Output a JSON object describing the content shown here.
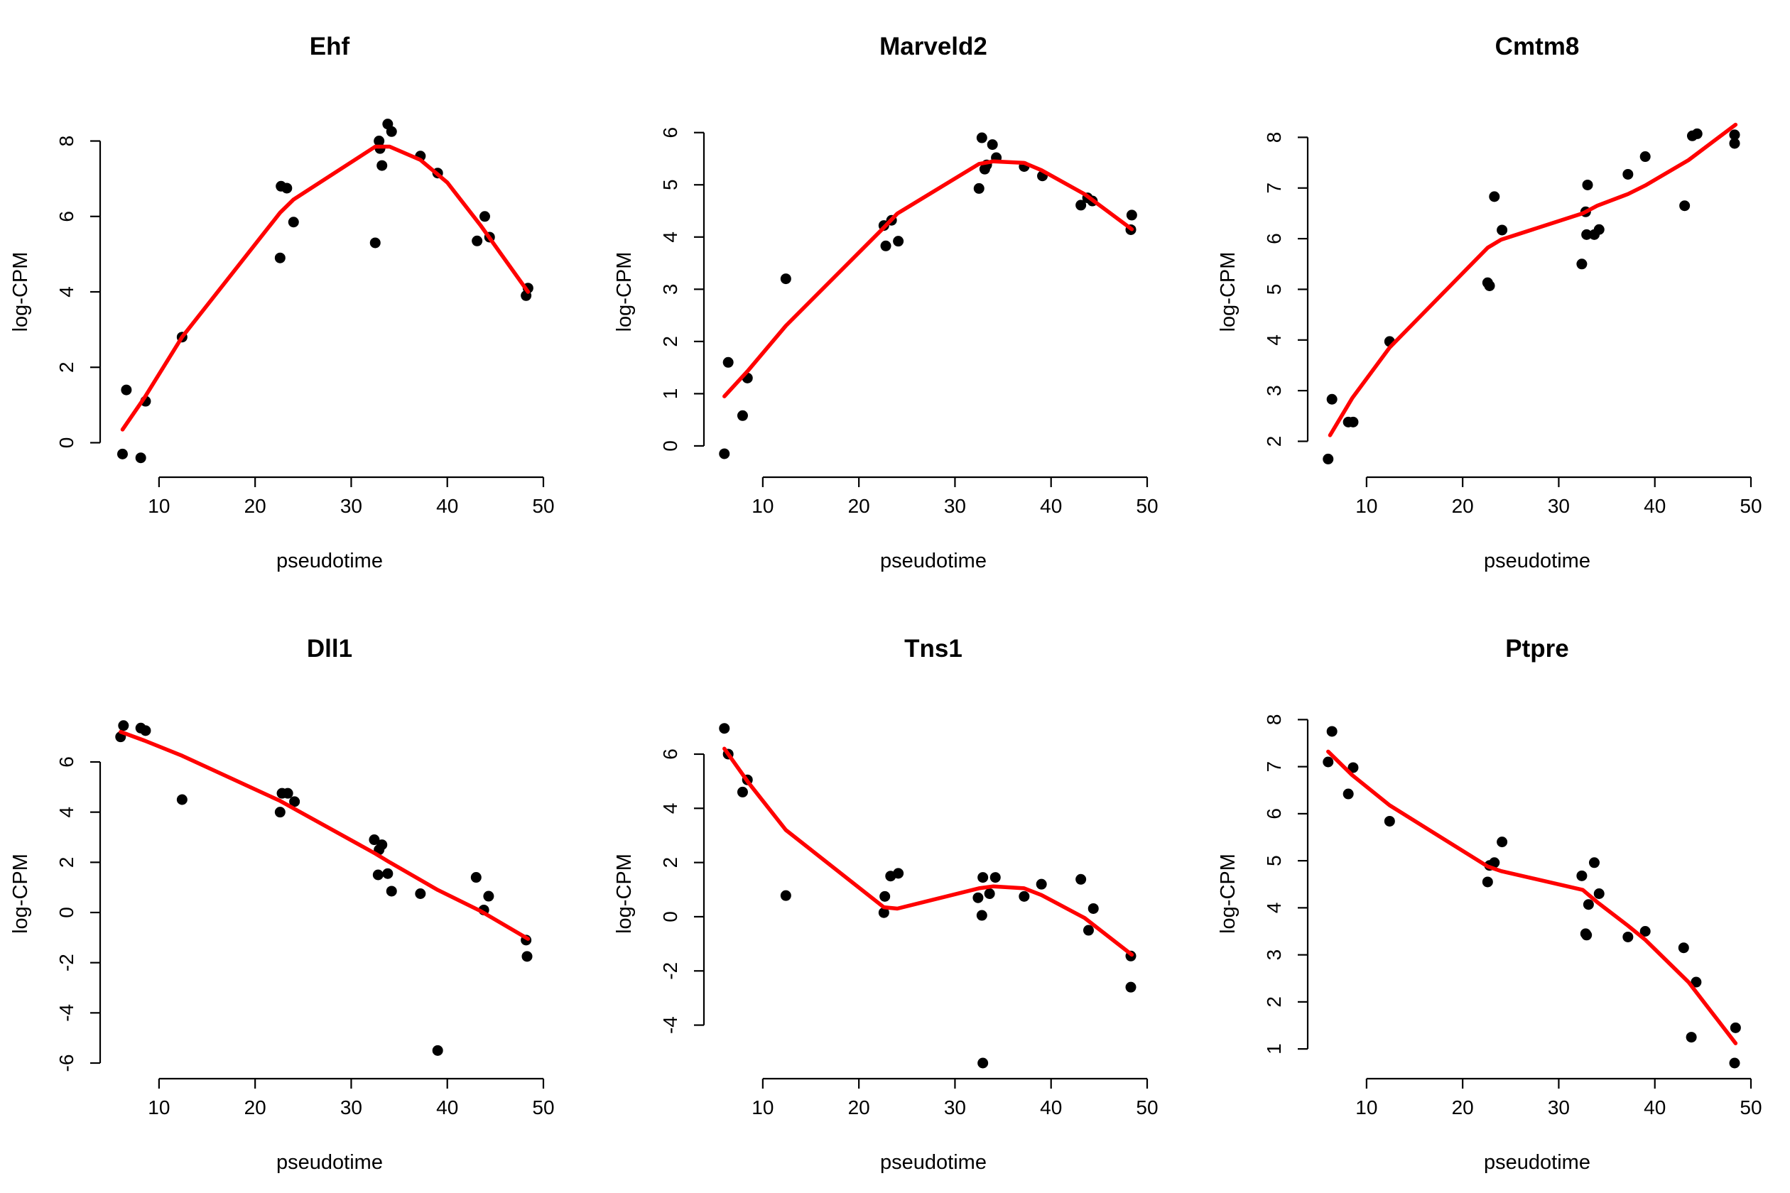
{
  "chart_data": [
    {
      "type": "scatter",
      "title": "Ehf",
      "xlabel": "pseudotime",
      "ylabel": "log-CPM",
      "xlim": [
        5.5,
        50
      ],
      "ylim": [
        -0.5,
        8.5
      ],
      "xticks": [
        10,
        20,
        30,
        40,
        50
      ],
      "yticks": [
        0,
        2,
        4,
        6,
        8
      ],
      "points": [
        [
          6.2,
          -0.3
        ],
        [
          6.6,
          1.4
        ],
        [
          8.1,
          -0.4
        ],
        [
          8.6,
          1.1
        ],
        [
          12.4,
          2.8
        ],
        [
          22.6,
          4.9
        ],
        [
          22.7,
          6.8
        ],
        [
          23.3,
          6.75
        ],
        [
          24.0,
          5.85
        ],
        [
          32.5,
          5.3
        ],
        [
          32.9,
          8.0
        ],
        [
          33.0,
          7.8
        ],
        [
          33.2,
          7.35
        ],
        [
          33.8,
          8.45
        ],
        [
          34.2,
          8.25
        ],
        [
          37.2,
          7.6
        ],
        [
          39.0,
          7.15
        ],
        [
          43.1,
          5.35
        ],
        [
          43.9,
          6.0
        ],
        [
          44.4,
          5.45
        ],
        [
          48.2,
          3.9
        ],
        [
          48.4,
          4.1
        ]
      ],
      "fit": [
        [
          6.2,
          0.35
        ],
        [
          8.5,
          1.2
        ],
        [
          12.4,
          2.8
        ],
        [
          22.6,
          6.1
        ],
        [
          24.0,
          6.45
        ],
        [
          32.5,
          7.85
        ],
        [
          34.0,
          7.85
        ],
        [
          37.2,
          7.5
        ],
        [
          40.0,
          6.9
        ],
        [
          43.5,
          5.75
        ],
        [
          48.4,
          4.0
        ]
      ]
    },
    {
      "type": "scatter",
      "title": "Marveld2",
      "xlabel": "pseudotime",
      "ylabel": "log-CPM",
      "xlim": [
        5.5,
        50
      ],
      "ylim": [
        -0.3,
        6.2
      ],
      "xticks": [
        10,
        20,
        30,
        40,
        50
      ],
      "yticks": [
        0,
        1,
        2,
        3,
        4,
        5,
        6
      ],
      "points": [
        [
          6.0,
          -0.15
        ],
        [
          6.4,
          1.6
        ],
        [
          7.9,
          0.58
        ],
        [
          8.4,
          1.3
        ],
        [
          12.4,
          3.2
        ],
        [
          22.6,
          4.22
        ],
        [
          22.8,
          3.83
        ],
        [
          23.4,
          4.32
        ],
        [
          24.1,
          3.92
        ],
        [
          32.5,
          4.93
        ],
        [
          32.8,
          5.9
        ],
        [
          33.1,
          5.3
        ],
        [
          33.3,
          5.38
        ],
        [
          33.9,
          5.77
        ],
        [
          34.3,
          5.52
        ],
        [
          37.2,
          5.35
        ],
        [
          39.1,
          5.17
        ],
        [
          43.1,
          4.61
        ],
        [
          43.8,
          4.75
        ],
        [
          44.3,
          4.69
        ],
        [
          48.3,
          4.14
        ],
        [
          48.4,
          4.42
        ]
      ],
      "fit": [
        [
          6.0,
          0.95
        ],
        [
          8.5,
          1.45
        ],
        [
          12.4,
          2.3
        ],
        [
          22.6,
          4.18
        ],
        [
          24.0,
          4.45
        ],
        [
          32.5,
          5.4
        ],
        [
          34.0,
          5.45
        ],
        [
          37.2,
          5.42
        ],
        [
          39.0,
          5.28
        ],
        [
          43.5,
          4.82
        ],
        [
          48.4,
          4.15
        ]
      ]
    },
    {
      "type": "scatter",
      "title": "Cmtm8",
      "xlabel": "pseudotime",
      "ylabel": "log-CPM",
      "xlim": [
        5.5,
        50
      ],
      "ylim": [
        1.6,
        8.3
      ],
      "xticks": [
        10,
        20,
        30,
        40,
        50
      ],
      "yticks": [
        2,
        3,
        4,
        5,
        6,
        7,
        8
      ],
      "points": [
        [
          6.0,
          1.65
        ],
        [
          6.4,
          2.83
        ],
        [
          8.1,
          2.38
        ],
        [
          8.6,
          2.38
        ],
        [
          12.4,
          3.97
        ],
        [
          22.6,
          5.13
        ],
        [
          22.8,
          5.07
        ],
        [
          23.3,
          6.83
        ],
        [
          24.1,
          6.17
        ],
        [
          32.4,
          5.5
        ],
        [
          32.8,
          6.53
        ],
        [
          33.0,
          7.06
        ],
        [
          32.9,
          6.08
        ],
        [
          33.7,
          6.08
        ],
        [
          34.2,
          6.18
        ],
        [
          37.2,
          7.27
        ],
        [
          39.0,
          7.62
        ],
        [
          43.1,
          6.65
        ],
        [
          43.9,
          8.03
        ],
        [
          44.4,
          8.07
        ],
        [
          48.3,
          7.88
        ],
        [
          48.3,
          8.05
        ]
      ],
      "fit": [
        [
          6.2,
          2.12
        ],
        [
          8.5,
          2.85
        ],
        [
          12.4,
          3.85
        ],
        [
          22.6,
          5.82
        ],
        [
          24.0,
          5.98
        ],
        [
          32.5,
          6.5
        ],
        [
          34.0,
          6.65
        ],
        [
          37.2,
          6.88
        ],
        [
          39.0,
          7.05
        ],
        [
          43.5,
          7.55
        ],
        [
          48.4,
          8.25
        ]
      ]
    },
    {
      "type": "scatter",
      "title": "Dll1",
      "xlabel": "pseudotime",
      "ylabel": "log-CPM",
      "xlim": [
        5.5,
        50
      ],
      "ylim": [
        -6,
        7.5
      ],
      "xticks": [
        10,
        20,
        30,
        40,
        50
      ],
      "yticks": [
        -6,
        -4,
        -2,
        0,
        2,
        4,
        6
      ],
      "points": [
        [
          6.0,
          7.0
        ],
        [
          6.3,
          7.45
        ],
        [
          8.1,
          7.35
        ],
        [
          8.6,
          7.25
        ],
        [
          12.4,
          4.5
        ],
        [
          22.6,
          4.0
        ],
        [
          22.8,
          4.75
        ],
        [
          23.4,
          4.75
        ],
        [
          24.1,
          4.42
        ],
        [
          32.4,
          2.9
        ],
        [
          32.8,
          1.5
        ],
        [
          32.9,
          2.5
        ],
        [
          33.2,
          2.7
        ],
        [
          33.8,
          1.55
        ],
        [
          34.2,
          0.85
        ],
        [
          37.2,
          0.75
        ],
        [
          39.0,
          -5.5
        ],
        [
          43.0,
          1.4
        ],
        [
          43.8,
          0.1
        ],
        [
          44.3,
          0.65
        ],
        [
          48.2,
          -1.1
        ],
        [
          48.3,
          -1.75
        ]
      ],
      "fit": [
        [
          6.0,
          7.2
        ],
        [
          8.5,
          6.85
        ],
        [
          12.4,
          6.25
        ],
        [
          22.6,
          4.45
        ],
        [
          24.0,
          4.15
        ],
        [
          32.5,
          2.35
        ],
        [
          34.0,
          2.0
        ],
        [
          37.2,
          1.3
        ],
        [
          39.0,
          0.9
        ],
        [
          43.5,
          0.05
        ],
        [
          48.4,
          -1.05
        ]
      ]
    },
    {
      "type": "scatter",
      "title": "Tns1",
      "xlabel": "pseudotime",
      "ylabel": "log-CPM",
      "xlim": [
        5.5,
        50
      ],
      "ylim": [
        -5.4,
        7.1
      ],
      "xticks": [
        10,
        20,
        30,
        40,
        50
      ],
      "yticks": [
        -4,
        -2,
        0,
        2,
        4,
        6
      ],
      "points": [
        [
          6.0,
          6.95
        ],
        [
          6.4,
          6.0
        ],
        [
          7.9,
          4.6
        ],
        [
          8.4,
          5.05
        ],
        [
          12.4,
          0.78
        ],
        [
          22.6,
          0.15
        ],
        [
          22.7,
          0.75
        ],
        [
          23.3,
          1.5
        ],
        [
          24.1,
          1.6
        ],
        [
          32.4,
          0.7
        ],
        [
          32.8,
          0.05
        ],
        [
          32.9,
          1.45
        ],
        [
          32.9,
          -5.4
        ],
        [
          33.6,
          0.85
        ],
        [
          34.2,
          1.45
        ],
        [
          37.2,
          0.75
        ],
        [
          39.0,
          1.2
        ],
        [
          43.1,
          1.38
        ],
        [
          43.9,
          -0.5
        ],
        [
          44.4,
          0.3
        ],
        [
          48.3,
          -1.45
        ],
        [
          48.3,
          -2.6
        ]
      ],
      "fit": [
        [
          6.0,
          6.2
        ],
        [
          8.5,
          4.95
        ],
        [
          12.4,
          3.2
        ],
        [
          22.6,
          0.35
        ],
        [
          24.0,
          0.3
        ],
        [
          32.5,
          1.05
        ],
        [
          34.0,
          1.12
        ],
        [
          37.2,
          1.05
        ],
        [
          39.0,
          0.8
        ],
        [
          43.5,
          -0.05
        ],
        [
          48.4,
          -1.4
        ]
      ]
    },
    {
      "type": "scatter",
      "title": "Ptpre",
      "xlabel": "pseudotime",
      "ylabel": "log-CPM",
      "xlim": [
        5.5,
        50
      ],
      "ylim": [
        0.7,
        7.9
      ],
      "xticks": [
        10,
        20,
        30,
        40,
        50
      ],
      "yticks": [
        1,
        2,
        3,
        4,
        5,
        6,
        7,
        8
      ],
      "points": [
        [
          6.0,
          7.1
        ],
        [
          6.4,
          7.75
        ],
        [
          8.1,
          6.42
        ],
        [
          8.6,
          6.98
        ],
        [
          12.4,
          5.84
        ],
        [
          22.6,
          4.55
        ],
        [
          22.8,
          4.9
        ],
        [
          23.3,
          4.96
        ],
        [
          24.1,
          5.4
        ],
        [
          32.4,
          4.68
        ],
        [
          32.8,
          3.45
        ],
        [
          32.9,
          3.42
        ],
        [
          33.1,
          4.07
        ],
        [
          33.7,
          4.96
        ],
        [
          34.2,
          4.3
        ],
        [
          37.2,
          3.38
        ],
        [
          39.0,
          3.5
        ],
        [
          43.0,
          3.15
        ],
        [
          43.8,
          1.25
        ],
        [
          44.3,
          2.42
        ],
        [
          48.3,
          0.7
        ],
        [
          48.4,
          1.45
        ]
      ],
      "fit": [
        [
          6.0,
          7.32
        ],
        [
          8.5,
          6.82
        ],
        [
          12.4,
          6.18
        ],
        [
          22.6,
          4.88
        ],
        [
          24.0,
          4.78
        ],
        [
          32.5,
          4.38
        ],
        [
          34.0,
          4.12
        ],
        [
          37.2,
          3.62
        ],
        [
          39.0,
          3.32
        ],
        [
          43.5,
          2.42
        ],
        [
          48.4,
          1.12
        ]
      ]
    }
  ]
}
